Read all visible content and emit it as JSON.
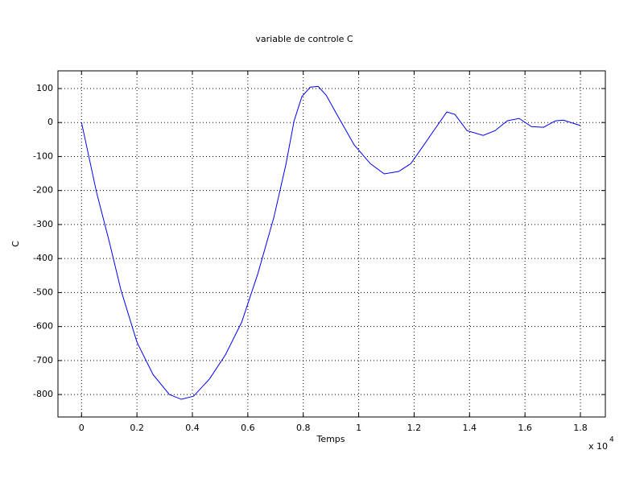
{
  "chart_data": {
    "type": "line",
    "title": "variable de controle C",
    "x_label": "Temps",
    "y_label": "C",
    "x_multiplier": {
      "base": "x 10",
      "exponent": "4"
    },
    "x": [
      0,
      0.055,
      0.1,
      0.142,
      0.2,
      0.258,
      0.317,
      0.36,
      0.404,
      0.462,
      0.52,
      0.578,
      0.636,
      0.694,
      0.737,
      0.767,
      0.795,
      0.825,
      0.854,
      0.883,
      0.926,
      0.984,
      1.042,
      1.092,
      1.144,
      1.188,
      1.231,
      1.275,
      1.318,
      1.347,
      1.391,
      1.449,
      1.492,
      1.536,
      1.579,
      1.623,
      1.667,
      1.71,
      1.739,
      1.8
    ],
    "series": [
      {
        "name": "C",
        "color": "#0000ff",
        "values": [
          0,
          -208,
          -350,
          -492,
          -646,
          -741,
          -800,
          -814,
          -805,
          -754,
          -682,
          -587,
          -445,
          -279,
          -125,
          5,
          76,
          104,
          106,
          80,
          17,
          -66,
          -121,
          -151,
          -144,
          -121,
          -71,
          -19,
          31,
          24,
          -24,
          -38,
          -24,
          5,
          12,
          -12,
          -14,
          5,
          7,
          -9
        ]
      }
    ],
    "xlim": [
      -0.085,
      1.89
    ],
    "ylim": [
      -866,
      152
    ],
    "xticks": [
      0,
      0.2,
      0.4,
      0.6,
      0.8,
      1,
      1.2,
      1.4,
      1.6,
      1.8
    ],
    "yticks": [
      -800,
      -700,
      -600,
      -500,
      -400,
      -300,
      -200,
      -100,
      0,
      100
    ],
    "grid": true
  }
}
